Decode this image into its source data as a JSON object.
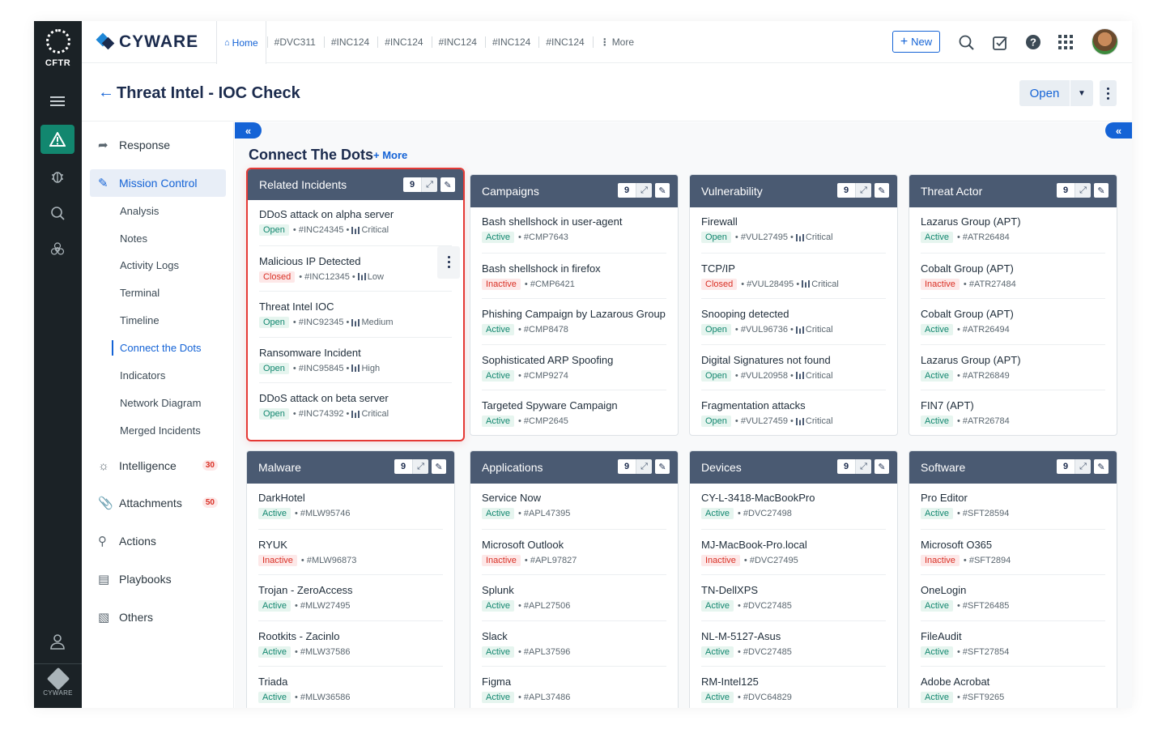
{
  "rail": {
    "brand": "CFTR",
    "bottom_brand": "CYWARE",
    "icons": [
      "menu-icon",
      "alert-icon",
      "bug-icon",
      "search-threat-icon",
      "biohazard-icon",
      "user-icon"
    ]
  },
  "topbar": {
    "brand": "CYWARE",
    "tabs": [
      "Home",
      "#DVC311",
      "#INC124",
      "#INC124",
      "#INC124",
      "#INC124",
      "#INC124",
      "More"
    ],
    "new_label": "New"
  },
  "header": {
    "title": "Threat Intel - IOC Check",
    "status_label": "Open"
  },
  "sidebar": {
    "response": "Response",
    "mission_control": "Mission Control",
    "sub_items": [
      "Analysis",
      "Notes",
      "Activity Logs",
      "Terminal",
      "Timeline",
      "Connect the Dots",
      "Indicators",
      "Network Diagram",
      "Merged Incidents"
    ],
    "active_sub": "Connect the Dots",
    "intelligence": "Intelligence",
    "intelligence_badge": "30",
    "attachments": "Attachments",
    "attachments_badge": "50",
    "actions": "Actions",
    "playbooks": "Playbooks",
    "others": "Others"
  },
  "main": {
    "title": "Connect The Dots",
    "more_label": "More",
    "cards": [
      {
        "title": "Related Incidents",
        "count": "9",
        "highlighted": true,
        "items": [
          {
            "name": "DDoS attack on alpha server",
            "status": "Open",
            "id": "#INC24345",
            "severity": "Critical"
          },
          {
            "name": "Malicious IP Detected",
            "status": "Closed",
            "id": "#INC12345",
            "severity": "Low"
          },
          {
            "name": "Threat Intel IOC",
            "status": "Open",
            "id": "#INC92345",
            "severity": "Medium"
          },
          {
            "name": "Ransomware Incident",
            "status": "Open",
            "id": "#INC95845",
            "severity": "High"
          },
          {
            "name": "DDoS attack on beta server",
            "status": "Open",
            "id": "#INC74392",
            "severity": "Critical"
          }
        ]
      },
      {
        "title": "Campaigns",
        "count": "9",
        "items": [
          {
            "name": "Bash shellshock in user-agent",
            "status": "Active",
            "id": "#CMP7643"
          },
          {
            "name": "Bash shellshock in firefox",
            "status": "Inactive",
            "id": "#CMP6421"
          },
          {
            "name": "Phishing Campaign by Lazarous Group",
            "status": "Active",
            "id": "#CMP8478"
          },
          {
            "name": "Sophisticated ARP Spoofing",
            "status": "Active",
            "id": "#CMP9274"
          },
          {
            "name": "Targeted Spyware Campaign",
            "status": "Active",
            "id": "#CMP2645"
          }
        ]
      },
      {
        "title": "Vulnerability",
        "count": "9",
        "items": [
          {
            "name": "Firewall",
            "status": "Open",
            "id": "#VUL27495",
            "severity": "Critical"
          },
          {
            "name": "TCP/IP",
            "status": "Closed",
            "id": "#VUL28495",
            "severity": "Critical"
          },
          {
            "name": "Snooping detected",
            "status": "Open",
            "id": "#VUL96736",
            "severity": "Critical"
          },
          {
            "name": "Digital Signatures not found",
            "status": "Open",
            "id": "#VUL20958",
            "severity": "Critical"
          },
          {
            "name": "Fragmentation attacks",
            "status": "Open",
            "id": "#VUL27459",
            "severity": "Critical"
          }
        ]
      },
      {
        "title": "Threat Actor",
        "count": "9",
        "items": [
          {
            "name": "Lazarus Group (APT)",
            "status": "Active",
            "id": "#ATR26484"
          },
          {
            "name": "Cobalt Group (APT)",
            "status": "Inactive",
            "id": "#ATR27484"
          },
          {
            "name": "Cobalt Group (APT)",
            "status": "Active",
            "id": "#ATR26494"
          },
          {
            "name": "Lazarus Group (APT)",
            "status": "Active",
            "id": "#ATR26849"
          },
          {
            "name": "FIN7 (APT)",
            "status": "Active",
            "id": "#ATR26784"
          }
        ]
      },
      {
        "title": "Malware",
        "count": "9",
        "items": [
          {
            "name": "DarkHotel",
            "status": "Active",
            "id": "#MLW95746"
          },
          {
            "name": "RYUK",
            "status": "Inactive",
            "id": "#MLW96873"
          },
          {
            "name": "Trojan - ZeroAccess",
            "status": "Active",
            "id": "#MLW27495"
          },
          {
            "name": "Rootkits - Zacinlo",
            "status": "Active",
            "id": "#MLW37586"
          },
          {
            "name": "Triada",
            "status": "Active",
            "id": "#MLW36586"
          }
        ]
      },
      {
        "title": "Applications",
        "count": "9",
        "items": [
          {
            "name": "Service Now",
            "status": "Active",
            "id": "#APL47395"
          },
          {
            "name": "Microsoft Outlook",
            "status": "Inactive",
            "id": "#APL97827"
          },
          {
            "name": "Splunk",
            "status": "Active",
            "id": "#APL27506"
          },
          {
            "name": "Slack",
            "status": "Active",
            "id": "#APL37596"
          },
          {
            "name": "Figma",
            "status": "Active",
            "id": "#APL37486"
          }
        ]
      },
      {
        "title": "Devices",
        "count": "9",
        "items": [
          {
            "name": "CY-L-3418-MacBookPro",
            "status": "Active",
            "id": "#DVC27498"
          },
          {
            "name": "MJ-MacBook-Pro.local",
            "status": "Inactive",
            "id": "#DVC27495"
          },
          {
            "name": "TN-DellXPS",
            "status": "Active",
            "id": "#DVC27485"
          },
          {
            "name": "NL-M-5127-Asus",
            "status": "Active",
            "id": "#DVC27485"
          },
          {
            "name": "RM-Intel125",
            "status": "Active",
            "id": "#DVC64829"
          }
        ]
      },
      {
        "title": "Software",
        "count": "9",
        "items": [
          {
            "name": "Pro Editor",
            "status": "Active",
            "id": "#SFT28594"
          },
          {
            "name": "Microsoft O365",
            "status": "Inactive",
            "id": "#SFT2894"
          },
          {
            "name": "OneLogin",
            "status": "Active",
            "id": "#SFT26485"
          },
          {
            "name": "FileAudit",
            "status": "Active",
            "id": "#SFT27854"
          },
          {
            "name": "Adobe Acrobat",
            "status": "Active",
            "id": "#SFT9265"
          }
        ]
      }
    ]
  }
}
